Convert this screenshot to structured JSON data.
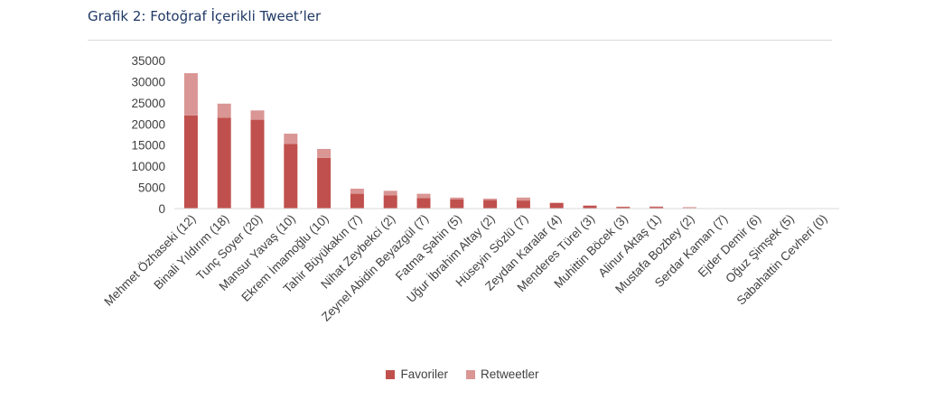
{
  "header": {
    "title": "Grafik 2: Fotoğraf İçerikli Tweet’ler"
  },
  "chart_data": {
    "type": "bar",
    "stacked": true,
    "categories": [
      "Mehmet Özhaseki (12)",
      "Binali Yıldırım (18)",
      "Tunç Soyer (20)",
      "Mansur Yavaş (10)",
      "Ekrem İmamoğlu (10)",
      "Tahir Büyükakın (7)",
      "Nihat Zeybekci (2)",
      "Zeynel Abidin Beyazgül (7)",
      "Fatma Şahin (5)",
      "Uğur İbrahim Altay (2)",
      "Hüseyin Sözlü (7)",
      "Zeydan Karalar (4)",
      "Menderes Türel (3)",
      "Muhittin Böcek (3)",
      "Alinur Aktaş (1)",
      "Mustafa Bozbey (2)",
      "Serdar Kaman (7)",
      "Ejder Demir (6)",
      "Oğuz Şimşek (5)",
      "Sabahattin Cevheri (0)"
    ],
    "series": [
      {
        "name": "Favoriler",
        "color": "#c0504d",
        "values": [
          22000,
          21500,
          21000,
          15300,
          12000,
          3500,
          3100,
          2500,
          2200,
          2000,
          1900,
          1300,
          650,
          400,
          400,
          150,
          0,
          0,
          0,
          0
        ]
      },
      {
        "name": "Retweetler",
        "color": "#d99694",
        "values": [
          10000,
          3300,
          2200,
          2400,
          2100,
          1200,
          1100,
          1000,
          400,
          350,
          700,
          100,
          100,
          50,
          100,
          200,
          0,
          0,
          0,
          0
        ]
      }
    ],
    "ylim": [
      0,
      35000
    ],
    "yticks": [
      "35000",
      "30000",
      "25000",
      "20000",
      "15000",
      "10000",
      "5000",
      "0"
    ],
    "grid": false,
    "legend_position": "bottom"
  }
}
